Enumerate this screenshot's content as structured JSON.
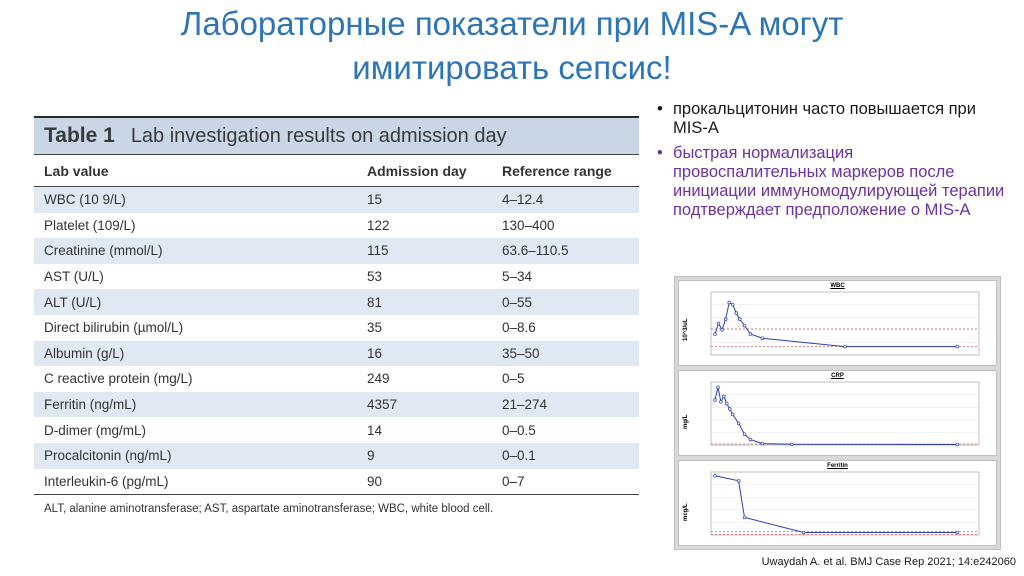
{
  "slide": {
    "title_line1": "Лабораторные показатели при MIS-A могут",
    "title_line2": "имитировать сепсис!",
    "citation": "Uwaydah A. et al. BMJ Case Rep 2021; 14:e242060"
  },
  "table": {
    "number": "Table 1",
    "caption": "Lab investigation results on admission day",
    "headers": [
      "Lab value",
      "Admission day",
      "Reference range"
    ],
    "rows": [
      [
        "WBC (10 9/L)",
        "15",
        "4–12.4"
      ],
      [
        "Platelet (109/L)",
        "122",
        "130–400"
      ],
      [
        "Creatinine (mmol/L)",
        "115",
        "63.6–110.5"
      ],
      [
        "AST (U/L)",
        "53",
        "5–34"
      ],
      [
        "ALT (U/L)",
        "81",
        "0–55"
      ],
      [
        "Direct bilirubin (µmol/L)",
        "35",
        "0–8.6"
      ],
      [
        "Albumin (g/L)",
        "16",
        "35–50"
      ],
      [
        "C reactive protein (mg/L)",
        "249",
        "0–5"
      ],
      [
        "Ferritin (ng/mL)",
        "4357",
        "21–274"
      ],
      [
        "D-dimer (mg/mL)",
        "14",
        "0–0.5"
      ],
      [
        "Procalcitonin (ng/mL)",
        "9",
        "0–0.1"
      ],
      [
        "Interleukin-6 (pg/mL)",
        "90",
        "0–7"
      ]
    ],
    "footnote": "ALT, alanine aminotransferase; AST, aspartate aminotransferase; WBC, white blood cell."
  },
  "bullets": [
    {
      "text": "прокальцитонин часто повышается при MIS-A",
      "color": "#1a1a1a"
    },
    {
      "text": "быстрая нормализация провоспалительных маркеров после инициации иммуномодулирующей терапии подтверждает предположение о MIS-A",
      "color": "#7030a0"
    }
  ],
  "colors": {
    "title": "#2e75b6",
    "table_stripe": "#dfe8f3",
    "table_header": "#c9d6e6",
    "series": "#2b3fb0",
    "reference_line": "#d04040"
  },
  "chart_data": [
    {
      "type": "line",
      "title": "WBC",
      "ylabel": "10^3/uL",
      "ylim": [
        0,
        30
      ],
      "x": [
        0,
        0.6,
        1.2,
        1.8,
        2.4,
        3,
        3.6,
        4.2,
        5,
        6,
        8,
        22,
        41
      ],
      "values": [
        10,
        15,
        12,
        17,
        25,
        24,
        20,
        17,
        14,
        10,
        8,
        4,
        4
      ],
      "reference_lines": [
        12.4,
        4
      ]
    },
    {
      "type": "line",
      "title": "CRP",
      "ylabel": "mg/L",
      "ylim": [
        0,
        350
      ],
      "x": [
        0,
        0.5,
        1,
        1.5,
        2,
        2.5,
        3,
        4,
        5,
        6,
        8,
        13,
        41
      ],
      "values": [
        250,
        320,
        240,
        270,
        230,
        200,
        170,
        120,
        60,
        30,
        8,
        4,
        3
      ],
      "reference_lines": [
        5
      ]
    },
    {
      "type": "line",
      "title": "Ferritin",
      "ylabel": "mcg/L",
      "ylim": [
        0,
        5000
      ],
      "x": [
        0,
        4,
        5,
        15,
        41
      ],
      "values": [
        4700,
        4300,
        1400,
        200,
        200
      ],
      "reference_lines": [
        274,
        21
      ]
    }
  ]
}
